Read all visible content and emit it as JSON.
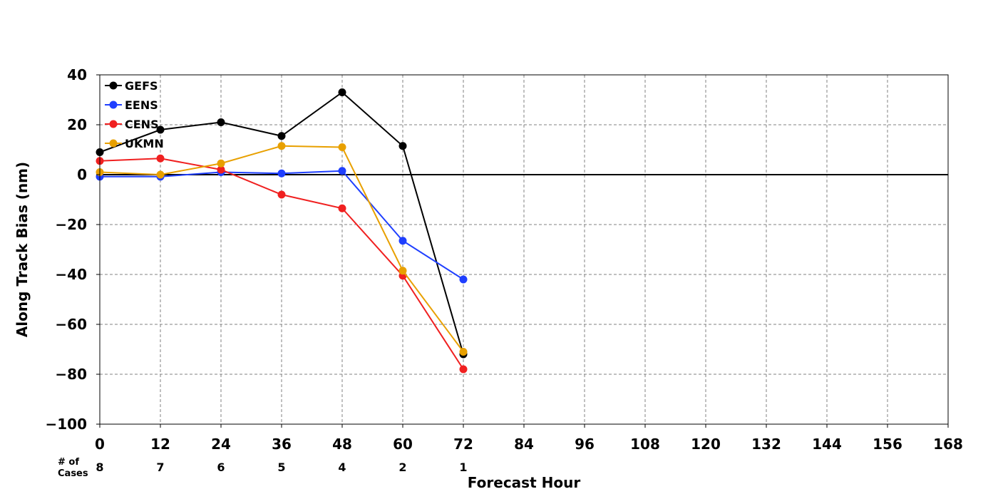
{
  "chart_data": {
    "type": "line",
    "title": "",
    "xlabel": "Forecast Hour",
    "ylabel": "Along Track Bias (nm)",
    "x_ticks": [
      0,
      12,
      24,
      36,
      48,
      60,
      72,
      84,
      96,
      108,
      120,
      132,
      144,
      156,
      168
    ],
    "y_ticks": [
      40,
      20,
      0,
      -20,
      -40,
      -60,
      -80,
      -100
    ],
    "y_tick_labels": [
      "40",
      "20",
      "0",
      "−20",
      "−40",
      "−60",
      "−80",
      "−100"
    ],
    "xlim": [
      0,
      168
    ],
    "ylim": [
      -100,
      40
    ],
    "grid": true,
    "zero_line": true,
    "legend_position": "upper-left",
    "cases": {
      "label_line1": "# of",
      "label_line2": "Cases",
      "x": [
        0,
        12,
        24,
        36,
        48,
        60,
        72
      ],
      "values": [
        "8",
        "7",
        "6",
        "5",
        "4",
        "2",
        "1"
      ]
    },
    "x": [
      0,
      12,
      24,
      36,
      48,
      60,
      72
    ],
    "series": [
      {
        "name": "GEFS",
        "color": "#000000",
        "values": [
          9,
          18,
          21,
          15.5,
          33,
          11.5,
          -72
        ]
      },
      {
        "name": "EENS",
        "color": "#1f3fff",
        "values": [
          -0.8,
          -0.8,
          1,
          0.5,
          1.5,
          -26.5,
          -42
        ]
      },
      {
        "name": "CENS",
        "color": "#f02020",
        "values": [
          5.5,
          6.5,
          2,
          -8,
          -13.5,
          -40.5,
          -78
        ]
      },
      {
        "name": "UKMN",
        "color": "#e8a000",
        "values": [
          1,
          0,
          4.5,
          11.5,
          11,
          -38.5,
          -71
        ]
      }
    ]
  }
}
